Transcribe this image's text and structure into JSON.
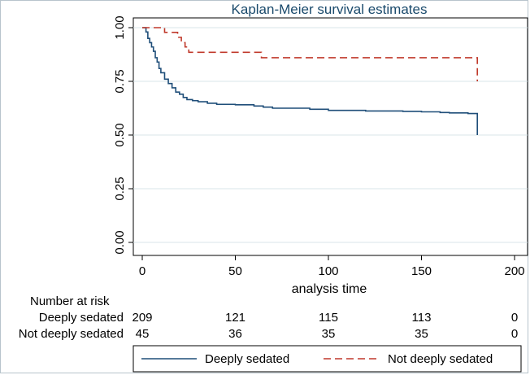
{
  "chart_data": {
    "type": "line",
    "title": "Kaplan-Meier survival estimates",
    "xlabel": "analysis time",
    "ylabel": "",
    "xlim": [
      0,
      200
    ],
    "ylim": [
      0,
      1
    ],
    "xticks": [
      "0",
      "50",
      "100",
      "150",
      "200"
    ],
    "yticks": [
      "0.00",
      "0.25",
      "0.50",
      "0.75",
      "1.00"
    ],
    "grid": true,
    "legend_position": "bottom",
    "series": [
      {
        "name": "Deeply sedated",
        "color": "#1f4e79",
        "dash": "solid",
        "x": [
          0,
          2,
          3,
          4,
          5,
          6,
          7,
          8,
          9,
          10,
          12,
          14,
          16,
          18,
          20,
          22,
          24,
          27,
          30,
          35,
          40,
          50,
          60,
          65,
          70,
          90,
          100,
          120,
          140,
          150,
          160,
          165,
          175,
          180,
          180
        ],
        "y": [
          1.0,
          0.98,
          0.95,
          0.93,
          0.91,
          0.89,
          0.86,
          0.84,
          0.81,
          0.79,
          0.76,
          0.74,
          0.72,
          0.7,
          0.69,
          0.675,
          0.665,
          0.66,
          0.655,
          0.648,
          0.643,
          0.641,
          0.635,
          0.63,
          0.625,
          0.62,
          0.615,
          0.612,
          0.61,
          0.608,
          0.605,
          0.603,
          0.6,
          0.6,
          0.5
        ]
      },
      {
        "name": "Not deeply sedated",
        "color": "#c0392b",
        "dash": "dashed",
        "x": [
          0,
          12,
          19,
          21,
          23,
          25,
          64,
          180,
          180
        ],
        "y": [
          1.0,
          0.978,
          0.955,
          0.93,
          0.91,
          0.885,
          0.86,
          0.86,
          0.75
        ]
      }
    ]
  },
  "risk_table": {
    "heading": "Number at risk",
    "times": [
      0,
      50,
      100,
      150,
      200
    ],
    "rows": [
      {
        "label": "Deeply sedated",
        "values": [
          "209",
          "121",
          "115",
          "113",
          "0"
        ]
      },
      {
        "label": "Not deeply sedated",
        "values": [
          "45",
          "36",
          "35",
          "35",
          "0"
        ]
      }
    ]
  }
}
